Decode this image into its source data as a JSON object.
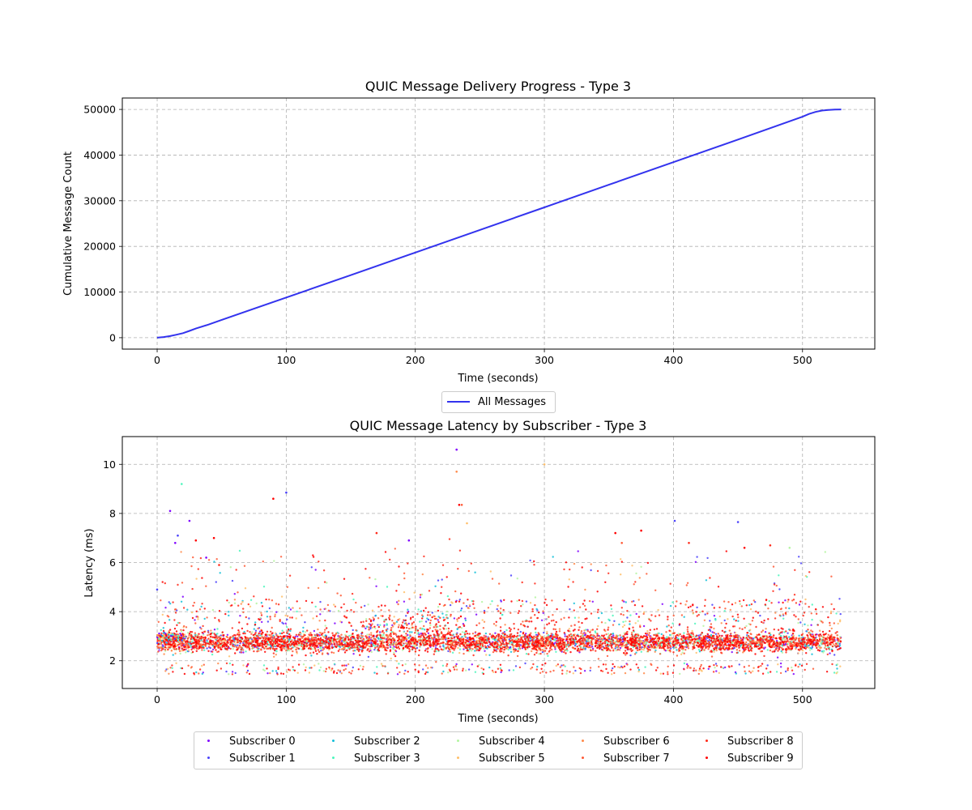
{
  "chart_data": [
    {
      "type": "line",
      "title": "QUIC Message Delivery Progress - Type 3",
      "xlabel": "Time (seconds)",
      "ylabel": "Cumulative Message Count",
      "xlim": [
        -27,
        556
      ],
      "ylim": [
        -2500,
        52500
      ],
      "xticks": [
        0,
        100,
        200,
        300,
        400,
        500
      ],
      "yticks": [
        0,
        10000,
        20000,
        30000,
        40000,
        50000
      ],
      "grid": true,
      "legend": "below",
      "series": [
        {
          "name": "All Messages",
          "color": "#3333ee",
          "x": [
            0,
            5,
            10,
            15,
            20,
            25,
            30,
            40,
            50,
            100,
            150,
            200,
            250,
            300,
            350,
            400,
            450,
            500,
            505,
            510,
            515,
            520,
            525,
            530
          ],
          "y": [
            0,
            150,
            350,
            650,
            1000,
            1500,
            2000,
            2900,
            3900,
            8800,
            13700,
            18650,
            23600,
            28550,
            33500,
            38450,
            43400,
            48400,
            49000,
            49450,
            49750,
            49900,
            49980,
            50000
          ]
        }
      ]
    },
    {
      "type": "scatter",
      "title": "QUIC Message Latency by Subscriber - Type 3",
      "xlabel": "Time (seconds)",
      "ylabel": "Latency (ms)",
      "xlim": [
        -27,
        556
      ],
      "ylim": [
        0.87,
        11.13
      ],
      "xticks": [
        0,
        100,
        200,
        300,
        400,
        500
      ],
      "yticks": [
        2,
        4,
        6,
        8,
        10
      ],
      "grid": true,
      "legend": "below",
      "x_range": [
        0,
        530
      ],
      "typical_latency_ms": 2.75,
      "series": [
        {
          "name": "Subscriber 0",
          "color": "#8000ff"
        },
        {
          "name": "Subscriber 1",
          "color": "#4a41fb"
        },
        {
          "name": "Subscriber 2",
          "color": "#13bfd8"
        },
        {
          "name": "Subscriber 3",
          "color": "#4bf6bc"
        },
        {
          "name": "Subscriber 4",
          "color": "#b4f5a1"
        },
        {
          "name": "Subscriber 5",
          "color": "#ffbf6a"
        },
        {
          "name": "Subscriber 6",
          "color": "#ff8a4a"
        },
        {
          "name": "Subscriber 7",
          "color": "#ff5a36"
        },
        {
          "name": "Subscriber 8",
          "color": "#ff2a1a"
        },
        {
          "name": "Subscriber 9",
          "color": "#ff0000"
        }
      ],
      "outliers": [
        [
          0,
          4.9,
          1
        ],
        [
          10,
          8.1,
          0
        ],
        [
          14,
          6.8,
          0
        ],
        [
          16,
          7.1,
          1
        ],
        [
          19,
          9.2,
          3
        ],
        [
          25,
          7.7,
          0
        ],
        [
          30,
          6.9,
          9
        ],
        [
          38,
          6.2,
          0
        ],
        [
          44,
          7.0,
          9
        ],
        [
          48,
          5.9,
          8
        ],
        [
          90,
          8.6,
          9
        ],
        [
          100,
          8.85,
          1
        ],
        [
          170,
          7.2,
          8
        ],
        [
          195,
          6.9,
          0
        ],
        [
          232,
          10.6,
          0
        ],
        [
          232,
          9.7,
          6
        ],
        [
          234,
          8.35,
          9
        ],
        [
          236,
          8.35,
          7
        ],
        [
          240,
          7.6,
          5
        ],
        [
          300,
          10.0,
          5
        ],
        [
          355,
          7.2,
          9
        ],
        [
          360,
          6.8,
          7
        ],
        [
          375,
          7.3,
          9
        ],
        [
          401,
          7.7,
          1
        ],
        [
          412,
          6.8,
          8
        ],
        [
          450,
          7.65,
          1
        ],
        [
          455,
          6.6,
          9
        ],
        [
          475,
          6.7,
          8
        ],
        [
          490,
          6.6,
          4
        ]
      ]
    }
  ]
}
